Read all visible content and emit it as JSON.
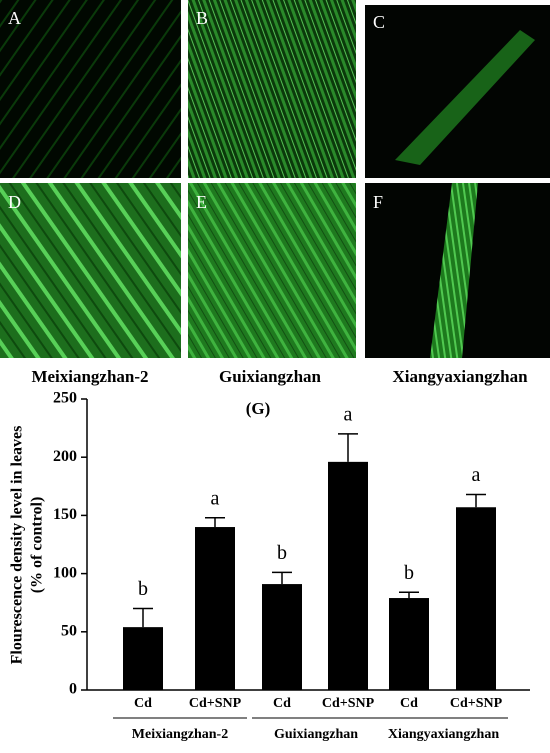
{
  "panels": {
    "labels": [
      "A",
      "B",
      "C",
      "D",
      "E",
      "F"
    ],
    "cultivars": [
      "Meixiangzhan-2",
      "Guixiangzhan",
      "Xiangyaxiangzhan"
    ]
  },
  "chart_data": {
    "type": "bar",
    "title": "(G)",
    "y_label": [
      "Flourescence density level in leaves",
      "(% of control)"
    ],
    "categories": [
      "Cd",
      "Cd+SNP",
      "Cd",
      "Cd+SNP",
      "Cd",
      "Cd+SNP"
    ],
    "groups": [
      "Meixiangzhan-2",
      "Guixiangzhan",
      "Xiangyaxiangzhan"
    ],
    "series": [
      {
        "color": "#000000",
        "values": [
          54,
          140,
          91,
          196,
          79,
          157
        ],
        "errors": [
          16,
          8,
          10,
          24,
          5,
          11
        ],
        "letters": [
          "b",
          "a",
          "b",
          "a",
          "b",
          "a"
        ]
      }
    ],
    "ylim": [
      0,
      250
    ],
    "yticks": [
      0,
      50,
      100,
      150,
      200,
      250
    ]
  }
}
